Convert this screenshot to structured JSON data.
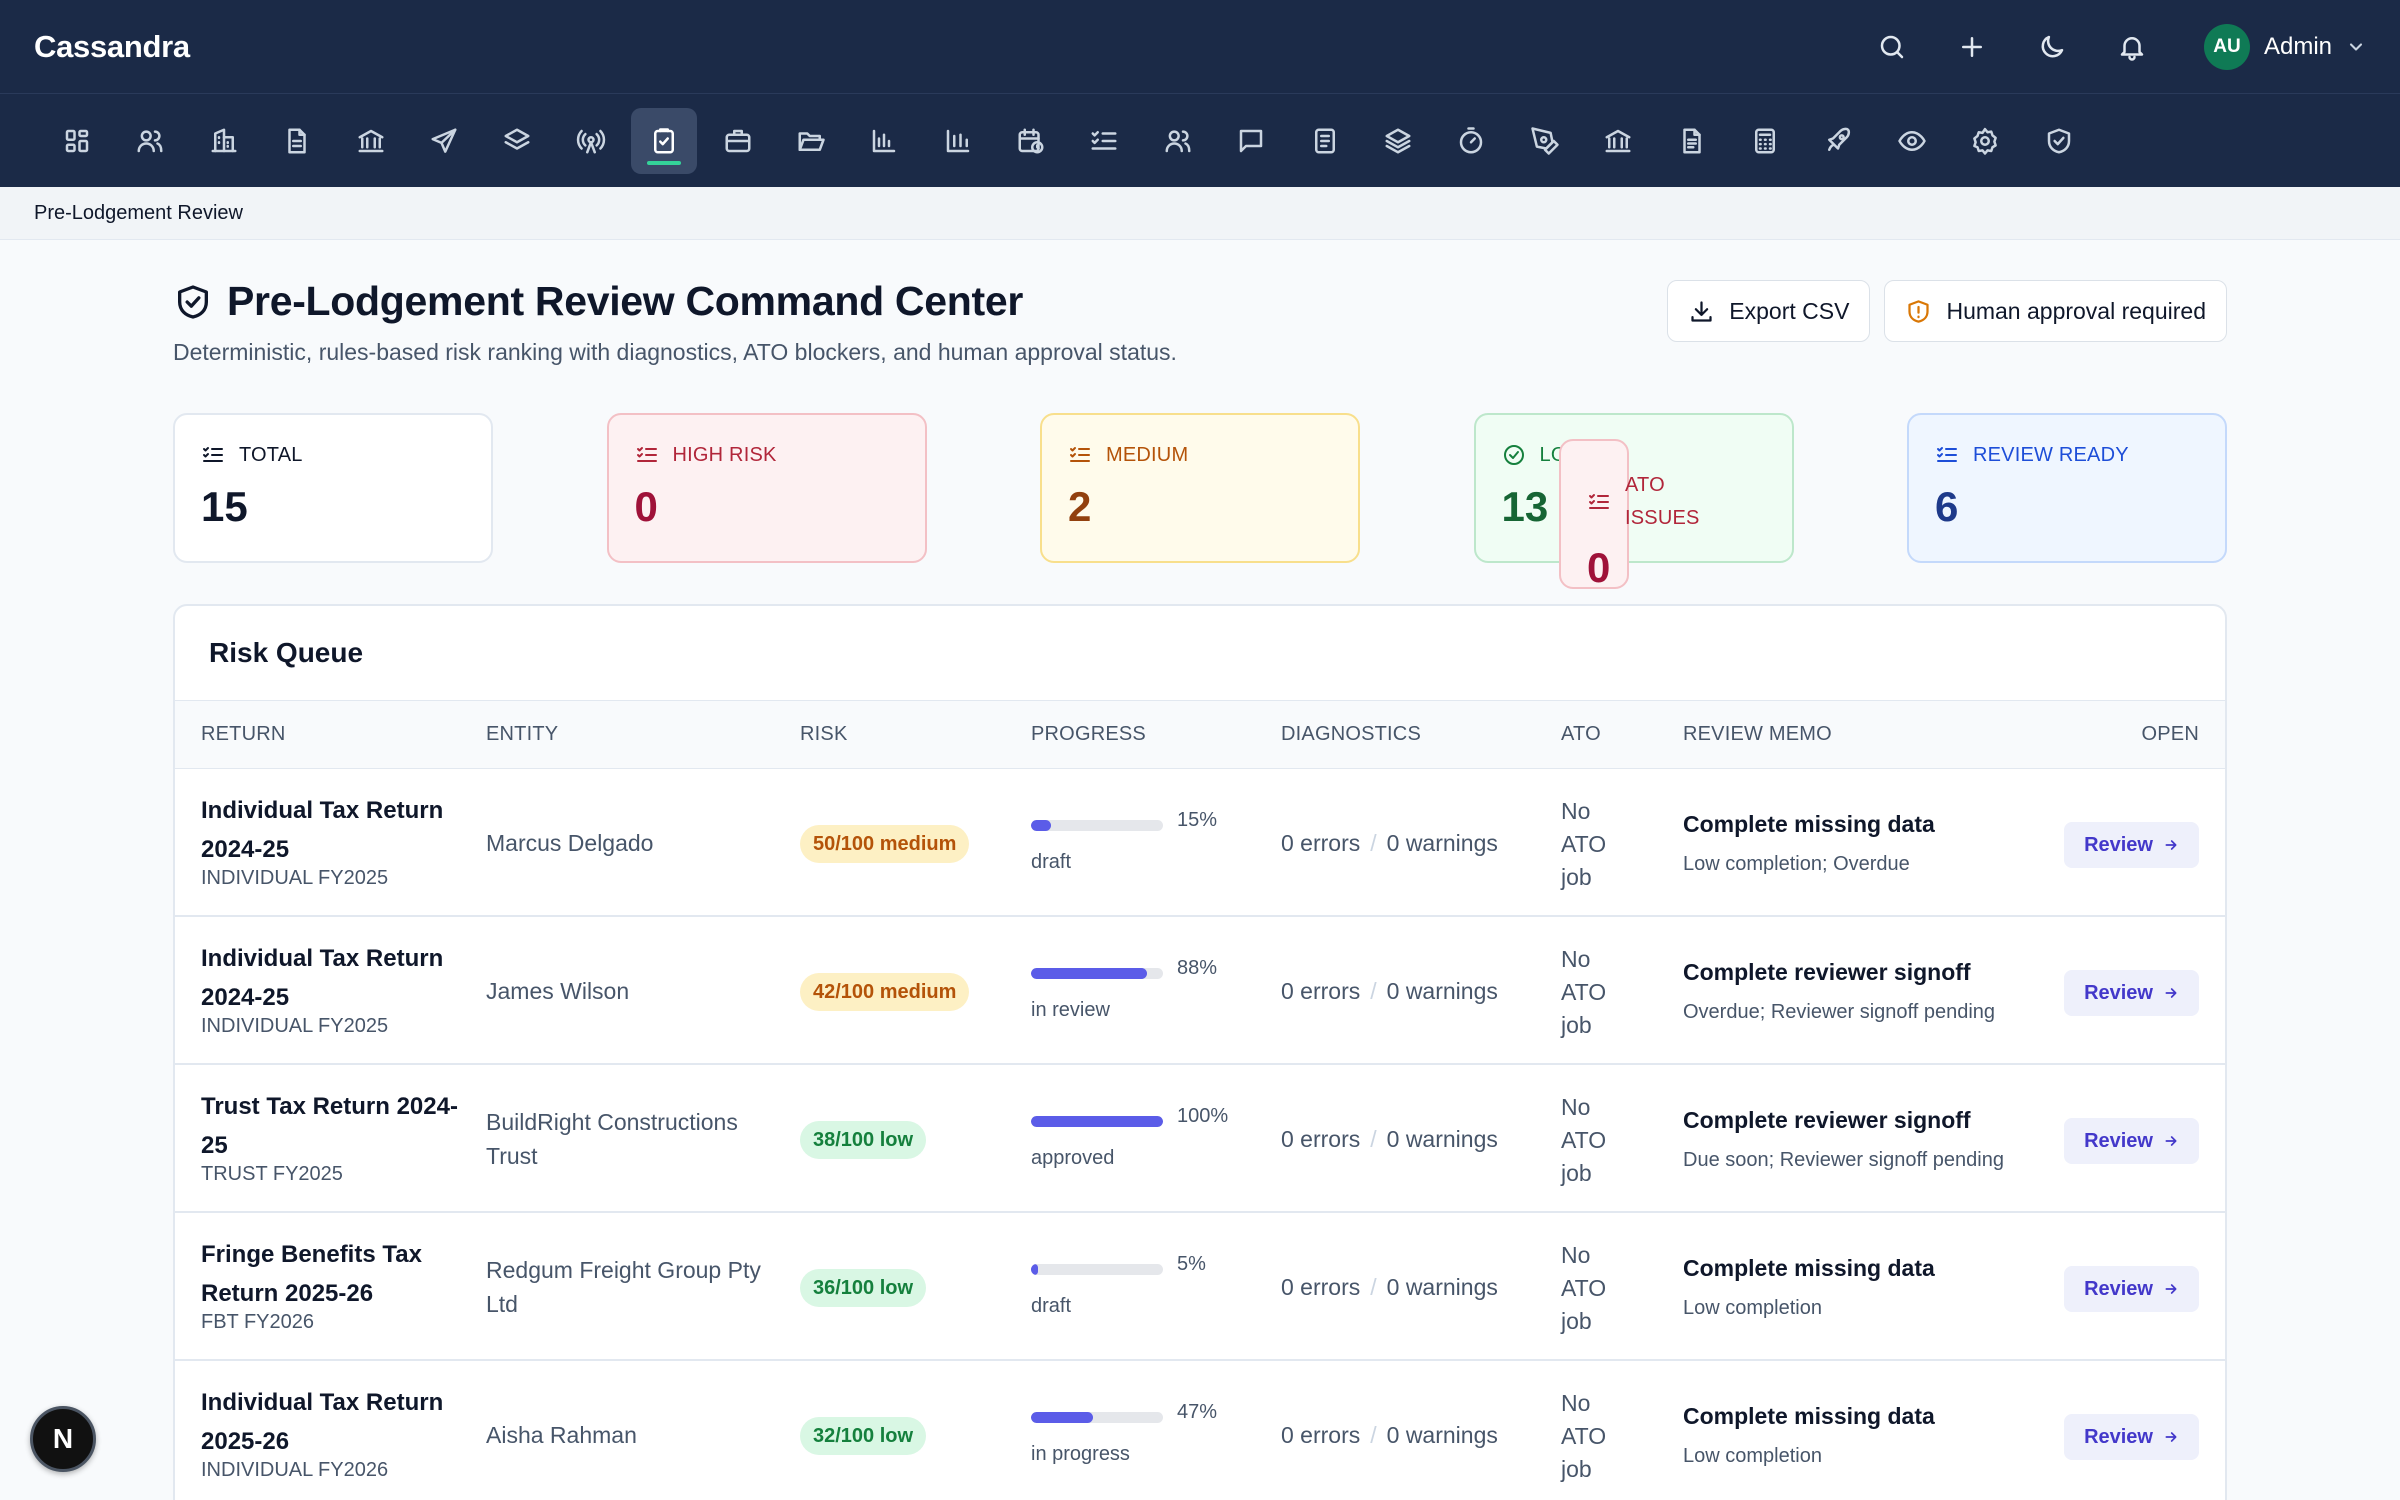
{
  "app": {
    "brand": "Cassandra",
    "user_initials": "AU",
    "user_name": "Admin"
  },
  "topbar_icons": [
    "search-icon",
    "plus-icon",
    "moon-icon",
    "bell-icon"
  ],
  "nav_icons": [
    "dashboard-icon",
    "users-icon",
    "building-icon",
    "file-text-icon",
    "bank-icon",
    "send-icon",
    "layers-icon",
    "broadcast-icon",
    "clipboard-check-icon",
    "briefcase-icon",
    "folder-open-icon",
    "bar-chart-icon",
    "bar-chart-alt-icon",
    "calendar-clock-icon",
    "list-checks-icon",
    "team-icon",
    "message-square-icon",
    "notepad-icon",
    "stack-icon",
    "timer-icon",
    "pen-tool-icon",
    "landmark-icon",
    "document-icon",
    "calculator-icon",
    "rocket-icon",
    "eye-icon",
    "settings-icon",
    "shield-check-icon"
  ],
  "nav_active_index": 8,
  "breadcrumb": "Pre-Lodgement Review",
  "header": {
    "title": "Pre-Lodgement Review Command Center",
    "subtitle": "Deterministic, rules-based risk ranking with diagnostics, ATO blockers, and human approval status.",
    "export_label": "Export CSV",
    "approval_label": "Human approval required"
  },
  "stats": [
    {
      "label": "TOTAL",
      "value": "15",
      "icon": "list-checks-icon"
    },
    {
      "label": "HIGH RISK",
      "value": "0",
      "icon": "list-checks-icon"
    },
    {
      "label": "MEDIUM",
      "value": "2",
      "icon": "list-checks-icon"
    },
    {
      "label": "LOW",
      "value": "13",
      "icon": "check-circle-icon"
    },
    {
      "label": "ATO ISSUES",
      "value": "0",
      "icon": "list-checks-icon"
    },
    {
      "label": "REVIEW READY",
      "value": "6",
      "icon": "list-checks-icon"
    }
  ],
  "queue": {
    "title": "Risk Queue",
    "columns": [
      "RETURN",
      "ENTITY",
      "RISK",
      "PROGRESS",
      "DIAGNOSTICS",
      "ATO",
      "REVIEW MEMO",
      "OPEN"
    ],
    "rows": [
      {
        "return_name": "Individual Tax Return 2024-25",
        "return_sub": "INDIVIDUAL FY2025",
        "entity": "Marcus Delgado",
        "risk": "50/100 medium",
        "risk_level": "medium",
        "progress": 15,
        "progress_label": "15%",
        "status": "draft",
        "errors": "0 errors",
        "warnings": "0 warnings",
        "ato": "No ATO job",
        "memo_title": "Complete missing data",
        "memo_sub": "Low completion; Overdue",
        "action": "Review"
      },
      {
        "return_name": "Individual Tax Return 2024-25",
        "return_sub": "INDIVIDUAL FY2025",
        "entity": "James Wilson",
        "risk": "42/100 medium",
        "risk_level": "medium",
        "progress": 88,
        "progress_label": "88%",
        "status": "in review",
        "errors": "0 errors",
        "warnings": "0 warnings",
        "ato": "No ATO job",
        "memo_title": "Complete reviewer signoff",
        "memo_sub": "Overdue; Reviewer signoff pending",
        "action": "Review"
      },
      {
        "return_name": "Trust Tax Return 2024-25",
        "return_sub": "TRUST FY2025",
        "entity": "BuildRight Constructions Trust",
        "risk": "38/100 low",
        "risk_level": "low",
        "progress": 100,
        "progress_label": "100%",
        "status": "approved",
        "errors": "0 errors",
        "warnings": "0 warnings",
        "ato": "No ATO job",
        "memo_title": "Complete reviewer signoff",
        "memo_sub": "Due soon; Reviewer signoff pending",
        "action": "Review"
      },
      {
        "return_name": "Fringe Benefits Tax Return 2025-26",
        "return_sub": "FBT FY2026",
        "entity": "Redgum Freight Group Pty Ltd",
        "risk": "36/100 low",
        "risk_level": "low",
        "progress": 5,
        "progress_label": "5%",
        "status": "draft",
        "errors": "0 errors",
        "warnings": "0 warnings",
        "ato": "No ATO job",
        "memo_title": "Complete missing data",
        "memo_sub": "Low completion",
        "action": "Review"
      },
      {
        "return_name": "Individual Tax Return 2025-26",
        "return_sub": "INDIVIDUAL FY2026",
        "entity": "Aisha Rahman",
        "risk": "32/100 low",
        "risk_level": "low",
        "progress": 47,
        "progress_label": "47%",
        "status": "in progress",
        "errors": "0 errors",
        "warnings": "0 warnings",
        "ato": "No ATO job",
        "memo_title": "Complete missing data",
        "memo_sub": "Low completion",
        "action": "Review"
      }
    ]
  },
  "floating_badge": "N"
}
